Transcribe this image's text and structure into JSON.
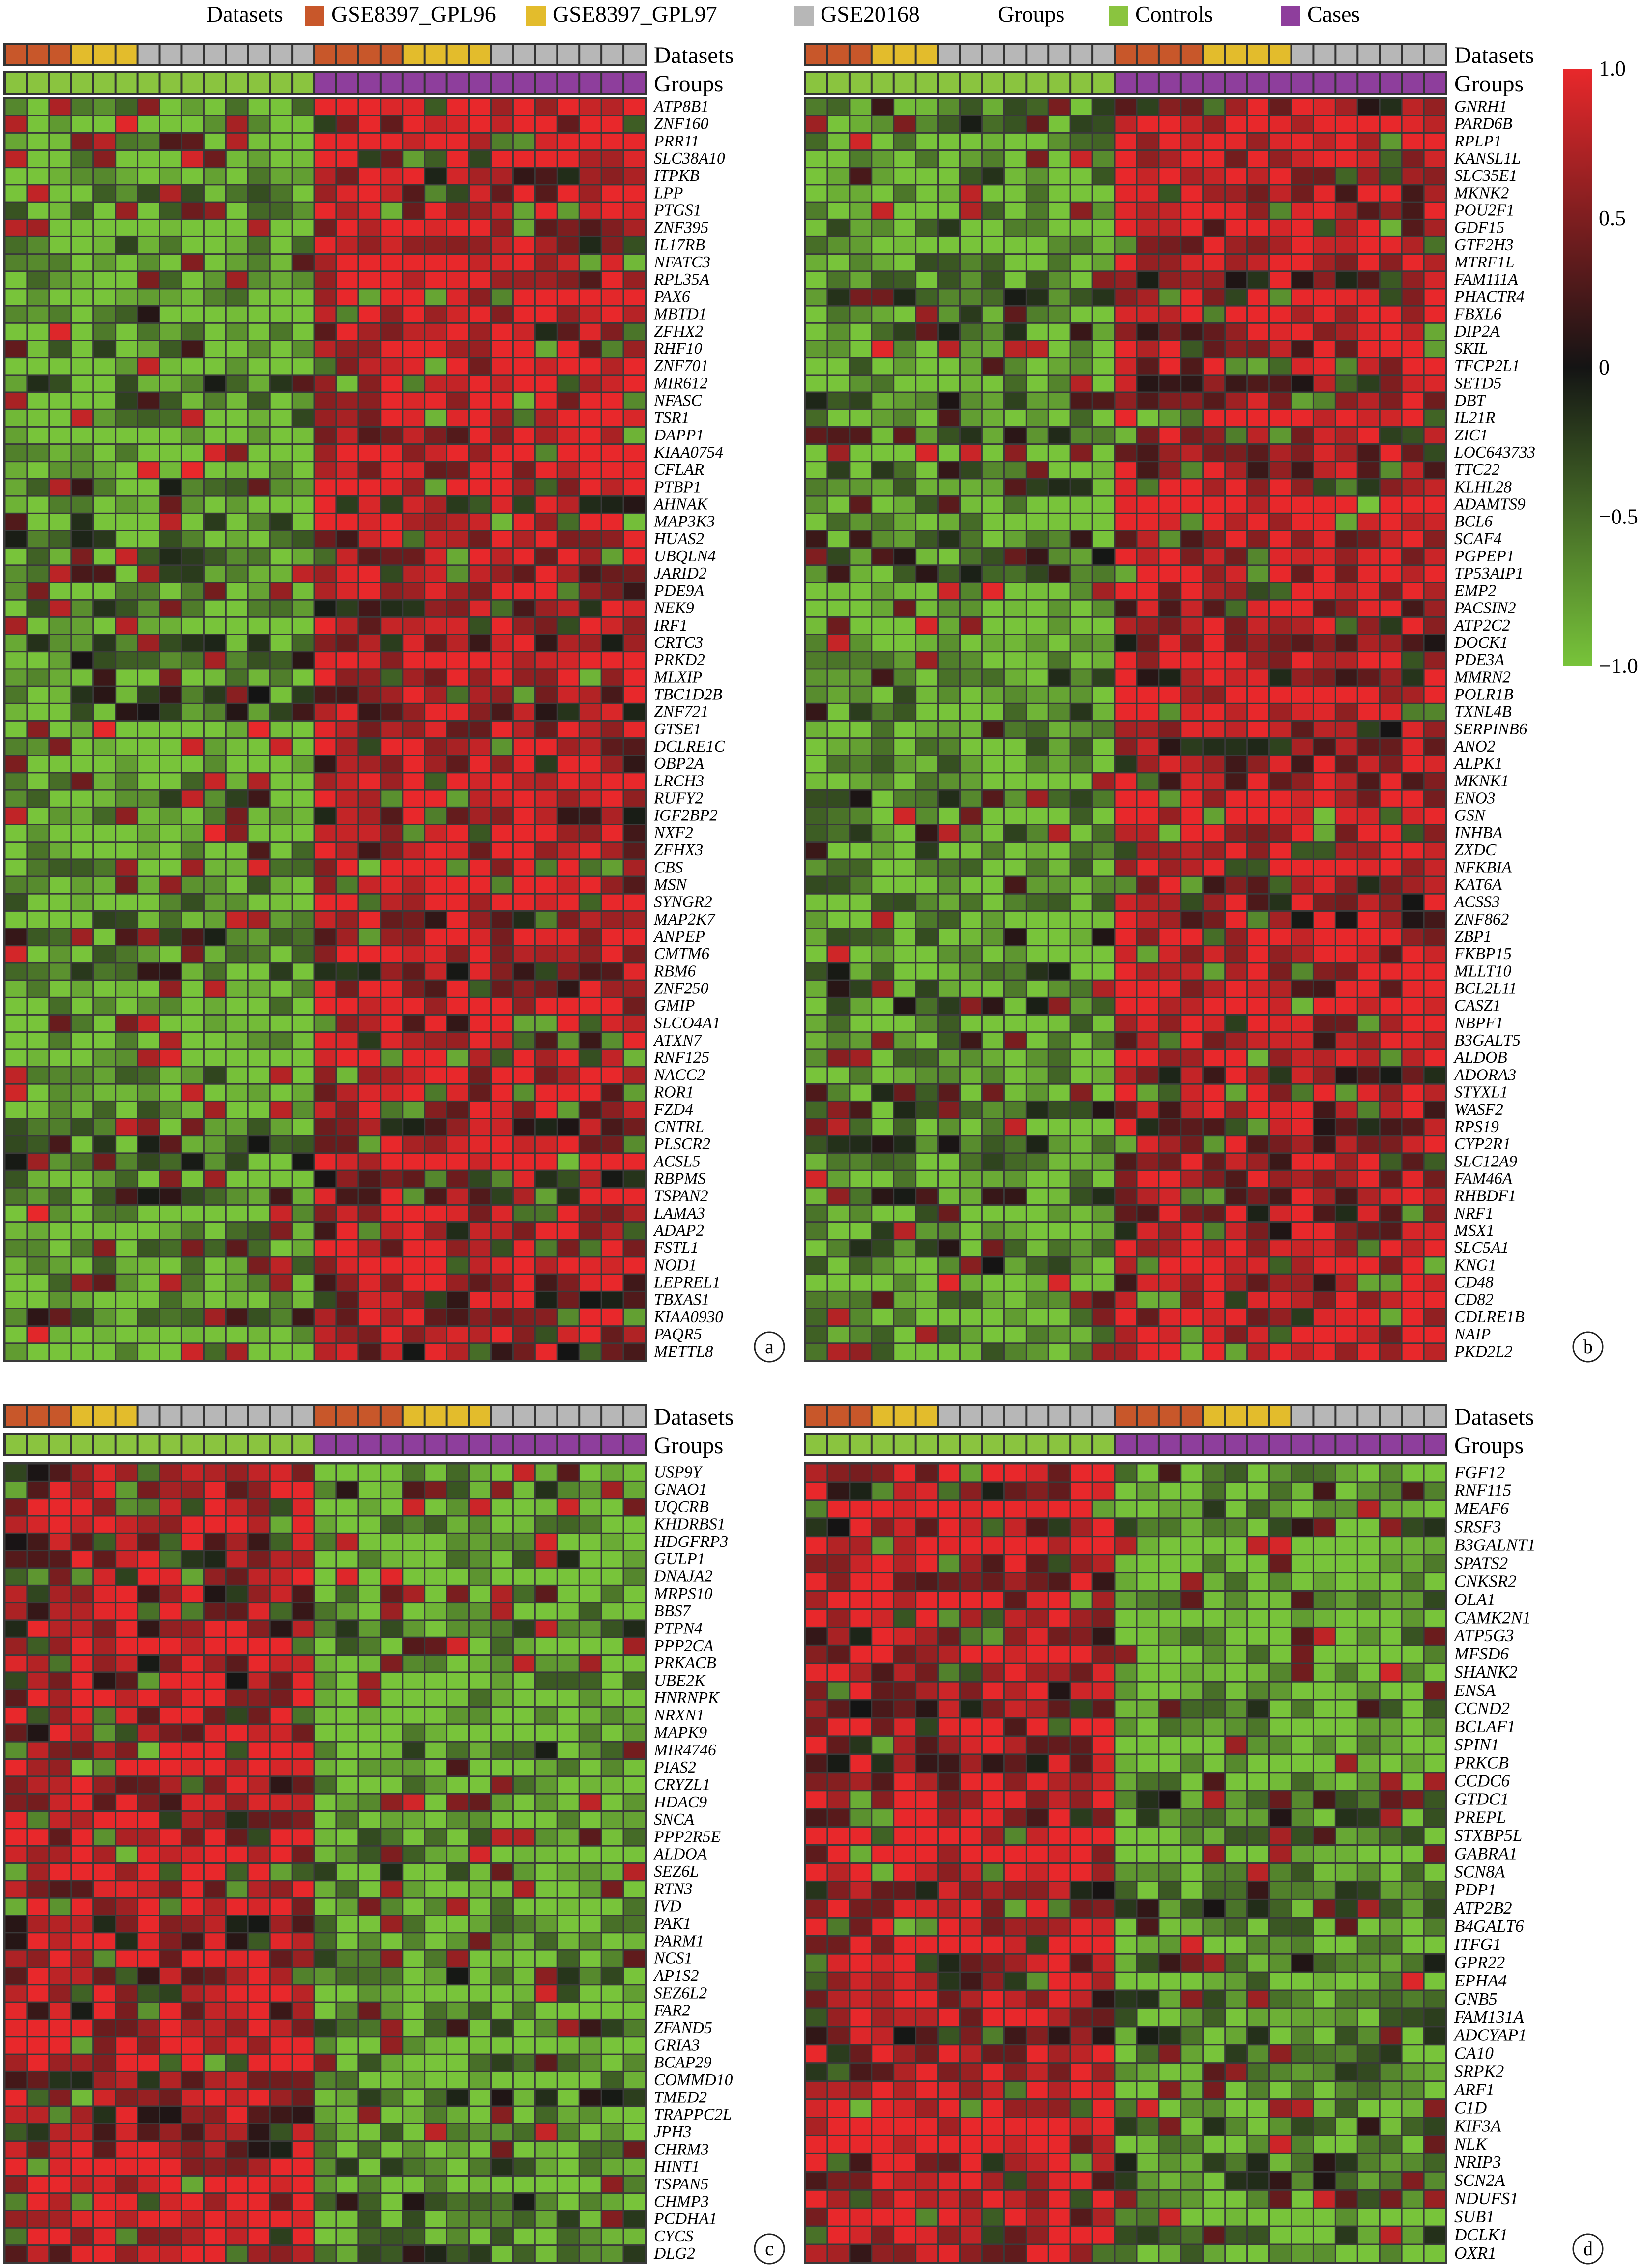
{
  "legend": {
    "datasets_title": "Datasets",
    "groups_title": "Groups",
    "items": [
      {
        "label": "GSE8397_GPL96",
        "color": "#c8572a"
      },
      {
        "label": "GSE8397_GPL97",
        "color": "#e3bc2c"
      },
      {
        "label": "GSE20168",
        "color": "#b7b7b7"
      },
      {
        "label": "Controls",
        "color": "#8ac43f"
      },
      {
        "label": "Cases",
        "color": "#8e3e9c"
      }
    ]
  },
  "colorbar": {
    "ticks": [
      "1.0",
      "0.5",
      "0",
      "−0.5",
      "−1.0"
    ],
    "max_color": "#e8282b",
    "mid_color": "#141414",
    "min_color": "#78c43a"
  },
  "chart_data": [
    {
      "type": "heatmap",
      "panel": "a",
      "columns": 29,
      "datasets_track": [
        "GSE8397_GPL96",
        "GSE8397_GPL96",
        "GSE8397_GPL96",
        "GSE8397_GPL97",
        "GSE8397_GPL97",
        "GSE8397_GPL97",
        "GSE20168",
        "GSE20168",
        "GSE20168",
        "GSE20168",
        "GSE20168",
        "GSE20168",
        "GSE20168",
        "GSE20168",
        "GSE8397_GPL96",
        "GSE8397_GPL96",
        "GSE8397_GPL96",
        "GSE8397_GPL96",
        "GSE8397_GPL97",
        "GSE8397_GPL97",
        "GSE8397_GPL97",
        "GSE8397_GPL97",
        "GSE20168",
        "GSE20168",
        "GSE20168",
        "GSE20168",
        "GSE20168",
        "GSE20168",
        "GSE20168"
      ],
      "groups_track": [
        "Controls",
        "Controls",
        "Controls",
        "Controls",
        "Controls",
        "Controls",
        "Controls",
        "Controls",
        "Controls",
        "Controls",
        "Controls",
        "Controls",
        "Controls",
        "Controls",
        "Cases",
        "Cases",
        "Cases",
        "Cases",
        "Cases",
        "Cases",
        "Cases",
        "Cases",
        "Cases",
        "Cases",
        "Cases",
        "Cases",
        "Cases",
        "Cases",
        "Cases"
      ],
      "rows": [
        "ATP8B1",
        "ZNF160",
        "PRR11",
        "SLC38A10",
        "ITPKB",
        "LPP",
        "PTGS1",
        "ZNF395",
        "IL17RB",
        "NFATC3",
        "RPL35A",
        "PAX6",
        "MBTD1",
        "ZFHX2",
        "RHF10",
        "ZNF701",
        "MIR612",
        "NFASC",
        "TSR1",
        "DAPP1",
        "KIAA0754",
        "CFLAR",
        "PTBP1",
        "AHNAK",
        "MAP3K3",
        "HUAS2",
        "UBQLN4",
        "JARID2",
        "PDE9A",
        "NEK9",
        "IRF1",
        "CRTC3",
        "PRKD2",
        "MLXIP",
        "TBC1D2B",
        "ZNF721",
        "GTSE1",
        "DCLRE1C",
        "OBP2A",
        "LRCH3",
        "RUFY2",
        "IGF2BP2",
        "NXF2",
        "ZFHX3",
        "CBS",
        "MSN",
        "SYNGR2",
        "MAP2K7",
        "ANPEP",
        "CMTM6",
        "RBM6",
        "ZNF250",
        "GMIP",
        "SLCO4A1",
        "ATXN7",
        "RNF125",
        "NACC2",
        "ROR1",
        "FZD4",
        "CNTRL",
        "PLSCR2",
        "ACSL5",
        "RBPMS",
        "TSPAN2",
        "LAMA3",
        "ADAP2",
        "FSTL1",
        "NOD1",
        "LEPREL1",
        "TBXAS1",
        "KIAA0930",
        "PAQR5",
        "METTL8"
      ],
      "pattern": "controls low, cases high"
    },
    {
      "type": "heatmap",
      "panel": "b",
      "columns": 29,
      "rows": [
        "GNRH1",
        "PARD6B",
        "RPLP1",
        "KANSL1L",
        "SLC35E1",
        "MKNK2",
        "POU2F1",
        "GDF15",
        "GTF2H3",
        "MTRF1L",
        "FAM111A",
        "PHACTR4",
        "FBXL6",
        "DIP2A",
        "SKIL",
        "TFCP2L1",
        "SETD5",
        "DBT",
        "IL21R",
        "ZIC1",
        "LOC643733",
        "TTC22",
        "KLHL28",
        "ADAMTS9",
        "BCL6",
        "SCAF4",
        "PGPEP1",
        "TP53AIP1",
        "EMP2",
        "PACSIN2",
        "ATP2C2",
        "DOCK1",
        "PDE3A",
        "MMRN2",
        "POLR1B",
        "TXNL4B",
        "SERPINB6",
        "ANO2",
        "ALPK1",
        "MKNK1",
        "ENO3",
        "GSN",
        "INHBA",
        "ZXDC",
        "NFKBIA",
        "KAT6A",
        "ACSS3",
        "ZNF862",
        "ZBP1",
        "FKBP15",
        "MLLT10",
        "BCL2L11",
        "CASZ1",
        "NBPF1",
        "B3GALT5",
        "ALDOB",
        "ADORA3",
        "STYXL1",
        "WASF2",
        "RPS19",
        "CYP2R1",
        "SLC12A9",
        "FAM46A",
        "RHBDF1",
        "NRF1",
        "MSX1",
        "SLC5A1",
        "KNG1",
        "CD48",
        "CD82",
        "CDLRE1B",
        "NAIP",
        "PKD2L2"
      ],
      "pattern": "controls low, cases high"
    },
    {
      "type": "heatmap",
      "panel": "c",
      "columns": 29,
      "rows": [
        "USP9Y",
        "GNAO1",
        "UQCRB",
        "KHDRBS1",
        "HDGFRP3",
        "GULP1",
        "DNAJA2",
        "MRPS10",
        "BBS7",
        "PTPN4",
        "PPP2CA",
        "PRKACB",
        "UBE2K",
        "HNRNPK",
        "NRXN1",
        "MAPK9",
        "MIR4746",
        "PIAS2",
        "CRYZL1",
        "HDAC9",
        "SNCA",
        "PPP2R5E",
        "ALDOA",
        "SEZ6L",
        "RTN3",
        "IVD",
        "PAK1",
        "PARM1",
        "NCS1",
        "AP1S2",
        "SEZ6L2",
        "FAR2",
        "ZFAND5",
        "GRIA3",
        "BCAP29",
        "COMMD10",
        "TMED2",
        "TRAPPC2L",
        "JPH3",
        "CHRM3",
        "HINT1",
        "TSPAN5",
        "CHMP3",
        "PCDHA1",
        "CYCS",
        "DLG2"
      ],
      "pattern": "controls high, cases low"
    },
    {
      "type": "heatmap",
      "panel": "d",
      "columns": 29,
      "rows": [
        "FGF12",
        "RNF115",
        "MEAF6",
        "SRSF3",
        "B3GALNT1",
        "SPATS2",
        "CNKSR2",
        "OLA1",
        "CAMK2N1",
        "ATP5G3",
        "MFSD6",
        "SHANK2",
        "ENSA",
        "CCND2",
        "BCLAF1",
        "SPIN1",
        "PRKCB",
        "CCDC6",
        "GTDC1",
        "PREPL",
        "STXBP5L",
        "GABRA1",
        "SCN8A",
        "PDP1",
        "ATP2B2",
        "B4GALT6",
        "ITFG1",
        "GPR22",
        "EPHA4",
        "GNB5",
        "FAM131A",
        "ADCYAP1",
        "CA10",
        "SRPK2",
        "ARF1",
        "C1D",
        "KIF3A",
        "NLK",
        "NRIP3",
        "SCN2A",
        "NDUFS1",
        "SUB1",
        "DCLK1",
        "OXR1"
      ],
      "pattern": "controls high, cases low"
    }
  ],
  "panel_labels": [
    "a",
    "b",
    "c",
    "d"
  ],
  "track_labels": {
    "datasets": "Datasets",
    "groups": "Groups"
  }
}
